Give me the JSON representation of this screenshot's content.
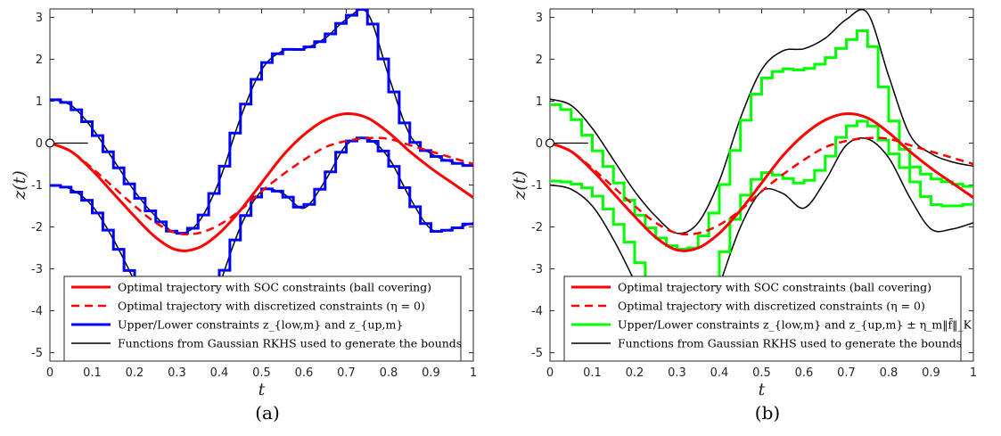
{
  "chart_data": [
    {
      "type": "line",
      "panel": "a",
      "caption": "(a)",
      "xlabel": "t",
      "ylabel": "z(t)",
      "xlim": [
        0,
        1
      ],
      "ylim": [
        -5.2,
        3.2
      ],
      "xticks": [
        0,
        0.1,
        0.2,
        0.3,
        0.4,
        0.5,
        0.6,
        0.7,
        0.8,
        0.9,
        1
      ],
      "yticks": [
        3,
        2,
        1,
        0,
        -1,
        -2,
        -3,
        -4,
        -5
      ],
      "legend_position": "bottom",
      "annotation": {
        "x": 0,
        "y": 0,
        "marker": "circle"
      },
      "series": [
        {
          "name": "Optimal trajectory with SOC constraints (ball covering)",
          "color": "#ff0000",
          "style": "solid",
          "width": 3,
          "x": [
            0,
            0.05,
            0.1,
            0.15,
            0.2,
            0.25,
            0.3,
            0.35,
            0.4,
            0.45,
            0.5,
            0.55,
            0.6,
            0.65,
            0.7,
            0.75,
            0.8,
            0.85,
            0.9,
            0.95,
            1
          ],
          "y": [
            0,
            -0.2,
            -0.65,
            -1.2,
            -1.75,
            -2.25,
            -2.55,
            -2.5,
            -2.15,
            -1.6,
            -0.95,
            -0.3,
            0.2,
            0.55,
            0.7,
            0.6,
            0.25,
            -0.2,
            -0.6,
            -0.95,
            -1.3
          ]
        },
        {
          "name": "Optimal trajectory with discretized constraints (η = 0)",
          "color": "#ff0000",
          "style": "dashed",
          "width": 2.5,
          "x": [
            0,
            0.05,
            0.1,
            0.15,
            0.2,
            0.25,
            0.3,
            0.35,
            0.4,
            0.45,
            0.5,
            0.55,
            0.6,
            0.65,
            0.7,
            0.75,
            0.8,
            0.85,
            0.9,
            0.95,
            1
          ],
          "y": [
            0,
            -0.2,
            -0.6,
            -1.05,
            -1.5,
            -1.9,
            -2.15,
            -2.15,
            -1.95,
            -1.6,
            -1.15,
            -0.75,
            -0.4,
            -0.1,
            0.05,
            0.12,
            0.1,
            -0.05,
            -0.2,
            -0.35,
            -0.5
          ]
        },
        {
          "name": "Upper/Lower constraints z_{low,m} and z_{up,m}",
          "color": "#0000ff",
          "style": "steps",
          "width": 3,
          "x": [
            0,
            0.05,
            0.1,
            0.15,
            0.2,
            0.25,
            0.3,
            0.35,
            0.4,
            0.45,
            0.5,
            0.55,
            0.6,
            0.65,
            0.7,
            0.75,
            0.8,
            0.85,
            0.9,
            0.95,
            1
          ],
          "y": [
            1.05,
            0.9,
            0.35,
            -0.4,
            -1.15,
            -1.75,
            -2.15,
            -1.9,
            -0.9,
            0.6,
            1.75,
            2.2,
            2.25,
            2.5,
            2.95,
            3.1,
            1.6,
            0.2,
            -0.25,
            -0.45,
            -0.55
          ],
          "y_lower": [
            -1.0,
            -1.1,
            -1.5,
            -2.3,
            -3.3,
            -4.4,
            -5.15,
            -4.85,
            -3.4,
            -2.0,
            -1.15,
            -1.2,
            -1.55,
            -0.9,
            -0.05,
            0.1,
            -0.35,
            -1.3,
            -2.05,
            -2.05,
            -1.9
          ]
        },
        {
          "name": "Functions from Gaussian RKHS used to generate the bounds",
          "color": "#000000",
          "style": "solid",
          "width": 1.5,
          "x": [
            0,
            0.05,
            0.1,
            0.15,
            0.2,
            0.25,
            0.3,
            0.35,
            0.4,
            0.45,
            0.5,
            0.55,
            0.6,
            0.65,
            0.7,
            0.75,
            0.8,
            0.85,
            0.9,
            0.95,
            1
          ],
          "y": [
            1.05,
            0.9,
            0.35,
            -0.4,
            -1.15,
            -1.75,
            -2.15,
            -1.9,
            -0.9,
            0.6,
            1.75,
            2.2,
            2.25,
            2.5,
            2.95,
            3.1,
            1.6,
            0.2,
            -0.25,
            -0.45,
            -0.55
          ],
          "y_lower": [
            -1.0,
            -1.1,
            -1.5,
            -2.3,
            -3.3,
            -4.4,
            -5.15,
            -4.85,
            -3.4,
            -2.0,
            -1.15,
            -1.2,
            -1.55,
            -0.9,
            -0.05,
            0.1,
            -0.35,
            -1.3,
            -2.05,
            -2.05,
            -1.9
          ]
        }
      ]
    },
    {
      "type": "line",
      "panel": "b",
      "caption": "(b)",
      "xlabel": "t",
      "ylabel": "z(t)",
      "xlim": [
        0,
        1
      ],
      "ylim": [
        -5.2,
        3.2
      ],
      "xticks": [
        0,
        0.1,
        0.2,
        0.3,
        0.4,
        0.5,
        0.6,
        0.7,
        0.8,
        0.9,
        1
      ],
      "yticks": [
        3,
        2,
        1,
        0,
        -1,
        -2,
        -3,
        -4,
        -5
      ],
      "legend_position": "bottom",
      "annotation": {
        "x": 0,
        "y": 0,
        "marker": "circle"
      },
      "series": [
        {
          "name": "Optimal trajectory with SOC constraints (ball covering)",
          "color": "#ff0000",
          "style": "solid",
          "width": 3,
          "x": [
            0,
            0.05,
            0.1,
            0.15,
            0.2,
            0.25,
            0.3,
            0.35,
            0.4,
            0.45,
            0.5,
            0.55,
            0.6,
            0.65,
            0.7,
            0.75,
            0.8,
            0.85,
            0.9,
            0.95,
            1
          ],
          "y": [
            0,
            -0.2,
            -0.65,
            -1.2,
            -1.75,
            -2.25,
            -2.55,
            -2.5,
            -2.15,
            -1.6,
            -0.95,
            -0.3,
            0.2,
            0.55,
            0.7,
            0.6,
            0.25,
            -0.2,
            -0.6,
            -0.95,
            -1.3
          ]
        },
        {
          "name": "Optimal trajectory with discretized constraints (η = 0)",
          "color": "#ff0000",
          "style": "dashed",
          "width": 2.5,
          "x": [
            0,
            0.05,
            0.1,
            0.15,
            0.2,
            0.25,
            0.3,
            0.35,
            0.4,
            0.45,
            0.5,
            0.55,
            0.6,
            0.65,
            0.7,
            0.75,
            0.8,
            0.85,
            0.9,
            0.95,
            1
          ],
          "y": [
            0,
            -0.2,
            -0.6,
            -1.05,
            -1.5,
            -1.9,
            -2.15,
            -2.15,
            -1.95,
            -1.6,
            -1.15,
            -0.75,
            -0.4,
            -0.1,
            0.05,
            0.12,
            0.1,
            -0.05,
            -0.2,
            -0.35,
            -0.5
          ]
        },
        {
          "name": "Upper/Lower constraints z_{low,m} and z_{up,m} ± η_m‖f̄‖_K",
          "color": "#00ff00",
          "style": "steps",
          "width": 3,
          "x": [
            0,
            0.05,
            0.1,
            0.15,
            0.2,
            0.25,
            0.3,
            0.35,
            0.4,
            0.45,
            0.5,
            0.55,
            0.6,
            0.65,
            0.7,
            0.75,
            0.8,
            0.85,
            0.9,
            0.95,
            1
          ],
          "y": [
            0.95,
            0.7,
            0.0,
            -0.75,
            -1.55,
            -2.15,
            -2.5,
            -2.4,
            -1.35,
            0.2,
            1.4,
            1.75,
            1.75,
            1.95,
            2.35,
            2.6,
            0.9,
            -0.4,
            -0.8,
            -0.95,
            -1.05
          ],
          "y_lower": [
            -0.9,
            -0.95,
            -1.15,
            -1.75,
            -2.6,
            -3.7,
            -4.9,
            -4.7,
            -3.0,
            -1.5,
            -0.75,
            -0.8,
            -0.95,
            -0.5,
            0.3,
            0.5,
            -0.1,
            -0.75,
            -1.4,
            -1.5,
            -1.45
          ]
        },
        {
          "name": "Functions from Gaussian RKHS used to generate the bounds",
          "color": "#000000",
          "style": "solid",
          "width": 1.5,
          "x": [
            0,
            0.05,
            0.1,
            0.15,
            0.2,
            0.25,
            0.3,
            0.35,
            0.4,
            0.45,
            0.5,
            0.55,
            0.6,
            0.65,
            0.7,
            0.75,
            0.8,
            0.85,
            0.9,
            0.95,
            1
          ],
          "y": [
            1.05,
            0.9,
            0.35,
            -0.4,
            -1.15,
            -1.75,
            -2.15,
            -1.9,
            -0.9,
            0.6,
            1.75,
            2.2,
            2.25,
            2.5,
            2.95,
            3.1,
            1.6,
            0.2,
            -0.25,
            -0.45,
            -0.55
          ],
          "y_lower": [
            -1.0,
            -1.1,
            -1.5,
            -2.3,
            -3.3,
            -4.4,
            -5.15,
            -4.85,
            -3.4,
            -2.0,
            -1.15,
            -1.2,
            -1.55,
            -0.9,
            -0.05,
            0.1,
            -0.35,
            -1.3,
            -2.05,
            -2.05,
            -1.9
          ]
        }
      ]
    }
  ]
}
